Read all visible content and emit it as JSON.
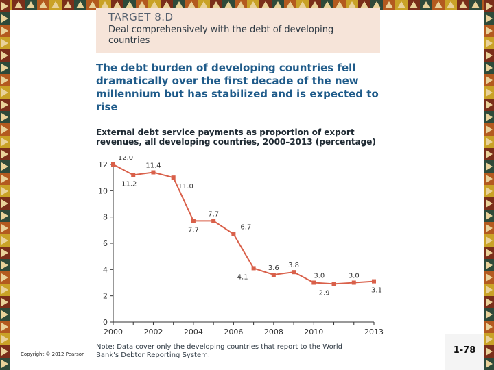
{
  "slide": {
    "target_title": "TARGET 8.D",
    "target_desc": "Deal comprehensively with the debt of developing countries",
    "headline": "The debt burden of developing countries fell dramatically over the first decade of the new millennium but has stabilized and is expected to rise",
    "note": "Note: Data cover only the developing countries that report to the World Bank's Debtor Reporting System.",
    "copyright": "Copyright © 2012 Pearson",
    "page_number": "1-78"
  },
  "colors": {
    "line": "#d9604a",
    "headline": "#1f5b8a",
    "box": "#f6e4d9"
  },
  "chart_data": {
    "type": "line",
    "title": "External debt service payments as proportion of export revenues, all developing countries, 2000–2013 (percentage)",
    "x": [
      2000,
      2001,
      2002,
      2003,
      2004,
      2005,
      2006,
      2007,
      2008,
      2009,
      2010,
      2011,
      2012,
      2013
    ],
    "values": [
      12.0,
      11.2,
      11.4,
      11.0,
      7.7,
      7.7,
      6.7,
      4.1,
      3.6,
      3.8,
      3.0,
      2.9,
      3.0,
      3.1
    ],
    "labels": [
      "12.0",
      "11.2",
      "11.4",
      "11.0",
      "7.7",
      "7.7",
      "6.7",
      "4.1",
      "3.6",
      "3.8",
      "3.0",
      "2.9",
      "3.0",
      "3.1"
    ],
    "xticks": [
      "2000",
      "2002",
      "2004",
      "2006",
      "2008",
      "2010",
      "2013"
    ],
    "xtick_values": [
      2000,
      2002,
      2004,
      2006,
      2008,
      2010,
      2013
    ],
    "yticks": [
      "0",
      "2",
      "4",
      "6",
      "8",
      "10",
      "12"
    ],
    "ytick_values": [
      0,
      2,
      4,
      6,
      8,
      10,
      12
    ],
    "xlim": [
      2000,
      2013
    ],
    "ylim": [
      0,
      12
    ],
    "grid": false,
    "legend": "none"
  }
}
